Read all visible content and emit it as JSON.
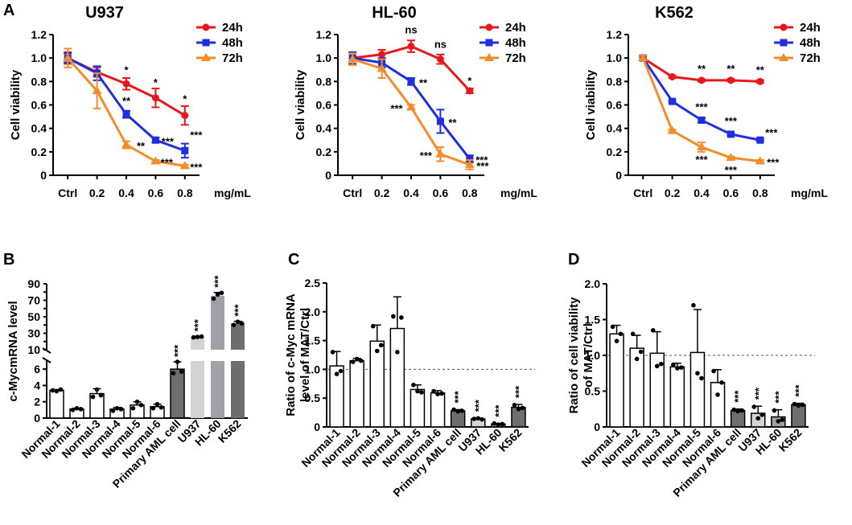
{
  "panels": {
    "a": "A",
    "b": "B",
    "c": "C",
    "d": "D"
  },
  "line_panels": [
    {
      "title": "U937",
      "type": "line",
      "ylabel": "Cell viability",
      "xunit": "mg/mL",
      "x": [
        "Ctrl",
        "0.2",
        "0.4",
        "0.6",
        "0.8"
      ],
      "ylim": [
        0,
        1.2
      ],
      "yticks": [
        "0",
        "0.2",
        "0.4",
        "0.6",
        "0.8",
        "1.0",
        "1.2"
      ],
      "series": [
        {
          "name": "24h",
          "color": "#e8171b",
          "marker": "circle",
          "values": [
            1.0,
            0.88,
            0.78,
            0.66,
            0.51
          ],
          "errors": [
            0.05,
            0.04,
            0.05,
            0.08,
            0.08
          ],
          "sig": [
            "",
            "",
            "*",
            "*",
            "*"
          ]
        },
        {
          "name": "48h",
          "color": "#1f2ee0",
          "marker": "square",
          "values": [
            1.0,
            0.87,
            0.52,
            0.3,
            0.21
          ],
          "errors": [
            0.04,
            0.06,
            0.03,
            0.02,
            0.06
          ],
          "sig": [
            "",
            "",
            "**",
            "***",
            "***"
          ]
        },
        {
          "name": "72h",
          "color": "#f48c2a",
          "marker": "triangle",
          "values": [
            1.0,
            0.72,
            0.26,
            0.12,
            0.08
          ],
          "errors": [
            0.08,
            0.15,
            0.03,
            0.01,
            0.01
          ],
          "sig": [
            "",
            "",
            "**",
            "***",
            "***"
          ]
        }
      ]
    },
    {
      "title": "HL-60",
      "type": "line",
      "ylabel": "Cell viability",
      "xunit": "mg/mL",
      "x": [
        "Ctrl",
        "0.2",
        "0.4",
        "0.6",
        "0.8"
      ],
      "ylim": [
        0,
        1.2
      ],
      "yticks": [
        "0",
        "0.2",
        "0.4",
        "0.6",
        "0.8",
        "1.0",
        "1.2"
      ],
      "series": [
        {
          "name": "24h",
          "color": "#e8171b",
          "marker": "circle",
          "values": [
            1.0,
            1.03,
            1.1,
            0.99,
            0.72
          ],
          "errors": [
            0.05,
            0.04,
            0.05,
            0.04,
            0.02
          ],
          "sig": [
            "",
            "",
            "ns",
            "ns",
            "*"
          ]
        },
        {
          "name": "48h",
          "color": "#1f2ee0",
          "marker": "square",
          "values": [
            1.0,
            0.96,
            0.8,
            0.46,
            0.14
          ],
          "errors": [
            0.05,
            0.04,
            0.03,
            0.1,
            0.03
          ],
          "sig": [
            "",
            "",
            "**",
            "**",
            "***"
          ]
        },
        {
          "name": "72h",
          "color": "#f48c2a",
          "marker": "triangle",
          "values": [
            0.99,
            0.91,
            0.58,
            0.18,
            0.09
          ],
          "errors": [
            0.05,
            0.08,
            0.02,
            0.06,
            0.04
          ],
          "sig": [
            "",
            "",
            "***",
            "***",
            "***"
          ]
        }
      ]
    },
    {
      "title": "K562",
      "type": "line",
      "ylabel": "Cell viability",
      "xunit": "mg/mL",
      "x": [
        "Ctrl",
        "0.2",
        "0.4",
        "0.6",
        "0.8"
      ],
      "ylim": [
        0,
        1.2
      ],
      "yticks": [
        "0",
        "0.2",
        "0.4",
        "0.6",
        "0.8",
        "1.0",
        "1.2"
      ],
      "series": [
        {
          "name": "24h",
          "color": "#e8171b",
          "marker": "circle",
          "values": [
            1.0,
            0.84,
            0.81,
            0.81,
            0.8
          ],
          "errors": [
            0.02,
            0.01,
            0.01,
            0.01,
            0.01
          ],
          "sig": [
            "",
            "",
            "**",
            "**",
            "**"
          ]
        },
        {
          "name": "48h",
          "color": "#1f2ee0",
          "marker": "square",
          "values": [
            1.0,
            0.63,
            0.47,
            0.35,
            0.3
          ],
          "errors": [
            0.02,
            0.01,
            0.02,
            0.01,
            0.01
          ],
          "sig": [
            "",
            "",
            "***",
            "***",
            "***"
          ]
        },
        {
          "name": "72h",
          "color": "#f48c2a",
          "marker": "triangle",
          "values": [
            1.0,
            0.38,
            0.24,
            0.15,
            0.12
          ],
          "errors": [
            0.02,
            0.01,
            0.04,
            0.01,
            0.01
          ],
          "sig": [
            "",
            "",
            "***",
            "***",
            "***"
          ]
        }
      ]
    }
  ],
  "bar_panels": [
    {
      "type": "bar",
      "ylabel_lines": [
        "c-MycmRNA level"
      ],
      "categories": [
        "Normal-1",
        "Normal-2",
        "Normal-3",
        "Normal-4",
        "Normal-5",
        "Normal-6",
        "Primary AML cell",
        "U937",
        "HL-60",
        "K562"
      ],
      "values": [
        3.4,
        1.1,
        3.0,
        1.1,
        1.6,
        1.4,
        6.0,
        25.5,
        75.5,
        42.0
      ],
      "errors": [
        0.1,
        0.1,
        0.6,
        0.2,
        0.4,
        0.3,
        0.9,
        0.8,
        4.0,
        2.5
      ],
      "points": [
        [
          3.4,
          3.3,
          3.5
        ],
        [
          1.0,
          1.2,
          1.1
        ],
        [
          2.6,
          3.5,
          2.8
        ],
        [
          0.9,
          1.2,
          1.1
        ],
        [
          1.2,
          2.0,
          1.6
        ],
        [
          1.2,
          1.7,
          1.3
        ],
        [
          5.5,
          6.9,
          5.7
        ],
        [
          25.0,
          25.5,
          26.0
        ],
        [
          72.0,
          77.0,
          79.0
        ],
        [
          40.0,
          44.0,
          42.0
        ]
      ],
      "fills": [
        "#ffffff",
        "#ffffff",
        "#ffffff",
        "#ffffff",
        "#ffffff",
        "#ffffff",
        "#6e6e6e",
        "#d3d3d3",
        "#a0a0a8",
        "#6e6e6e"
      ],
      "sig": [
        "",
        "",
        "",
        "",
        "",
        "",
        "***",
        "***",
        "***",
        "***"
      ],
      "ylim_lower": [
        0,
        7
      ],
      "ylim_upper": [
        10,
        90
      ],
      "yticks_lower": [
        "0",
        "2",
        "4",
        "6"
      ],
      "yticks_upper": [
        "10",
        "30",
        "50",
        "70",
        "90"
      ],
      "yticks_upper_vals": [
        10,
        20,
        30,
        40,
        50,
        60,
        70,
        80,
        90
      ]
    },
    {
      "type": "bar",
      "ylabel_lines": [
        "Ratio of c-Myc mRNA",
        "level of MAT/Ctrl"
      ],
      "categories": [
        "Normal-1",
        "Normal-2",
        "Normal-3",
        "Normal-4",
        "Normal-5",
        "Normal-6",
        "Primary AML cell",
        "U937",
        "HL-60",
        "K562"
      ],
      "values": [
        1.06,
        1.15,
        1.49,
        1.71,
        0.65,
        0.59,
        0.28,
        0.14,
        0.05,
        0.34
      ],
      "errors": [
        0.25,
        0.04,
        0.28,
        0.55,
        0.08,
        0.04,
        0.02,
        0.01,
        0.01,
        0.05
      ],
      "points": [
        [
          1.3,
          0.92,
          0.97
        ],
        [
          1.13,
          1.18,
          1.15
        ],
        [
          1.75,
          1.32,
          1.42
        ],
        [
          1.92,
          1.3,
          1.9
        ],
        [
          0.73,
          0.62,
          0.6
        ],
        [
          0.62,
          0.57,
          0.58
        ],
        [
          0.3,
          0.27,
          0.28
        ],
        [
          0.14,
          0.15,
          0.13
        ],
        [
          0.06,
          0.04,
          0.05
        ],
        [
          0.38,
          0.31,
          0.33
        ]
      ],
      "fills": [
        "#ffffff",
        "#ffffff",
        "#ffffff",
        "#ffffff",
        "#ffffff",
        "#ffffff",
        "#6e6e6e",
        "#d3d3d3",
        "#a0a0a8",
        "#6e6e6e"
      ],
      "sig": [
        "",
        "",
        "",
        "",
        "",
        "",
        "***",
        "***",
        "***",
        "***"
      ],
      "ylim": [
        0,
        2.5
      ],
      "yticks": [
        "0",
        "0.5",
        "1.0",
        "1.5",
        "2.0",
        "2.5"
      ],
      "refline": 1.0
    },
    {
      "type": "bar",
      "ylabel_lines": [
        "Ratio of cell viability",
        "of MAT/Ctrl"
      ],
      "categories": [
        "Normal-1",
        "Normal-2",
        "Normal-3",
        "Normal-4",
        "Normal-5",
        "Normal-6",
        "Primary AML cell",
        "U937",
        "HL-60",
        "K562"
      ],
      "values": [
        1.3,
        1.1,
        1.03,
        0.84,
        1.04,
        0.62,
        0.23,
        0.19,
        0.14,
        0.31
      ],
      "errors": [
        0.12,
        0.18,
        0.3,
        0.05,
        0.6,
        0.18,
        0.02,
        0.1,
        0.1,
        0.02
      ],
      "points": [
        [
          1.4,
          1.2,
          1.3
        ],
        [
          1.3,
          0.95,
          1.05
        ],
        [
          1.35,
          0.85,
          0.88
        ],
        [
          0.87,
          0.82,
          0.83
        ],
        [
          1.7,
          0.75,
          0.68
        ],
        [
          0.78,
          0.45,
          0.62
        ],
        [
          0.24,
          0.22,
          0.23
        ],
        [
          0.28,
          0.12,
          0.17
        ],
        [
          0.23,
          0.08,
          0.1
        ],
        [
          0.32,
          0.3,
          0.31
        ]
      ],
      "fills": [
        "#ffffff",
        "#ffffff",
        "#ffffff",
        "#ffffff",
        "#ffffff",
        "#ffffff",
        "#6e6e6e",
        "#d3d3d3",
        "#a0a0a8",
        "#6e6e6e"
      ],
      "sig": [
        "",
        "",
        "",
        "",
        "",
        "",
        "***",
        "***",
        "***",
        "***"
      ],
      "ylim": [
        0,
        2.0
      ],
      "yticks": [
        "0",
        "0.5",
        "1.0",
        "1.5",
        "2.0"
      ],
      "refline": 1.0
    }
  ]
}
